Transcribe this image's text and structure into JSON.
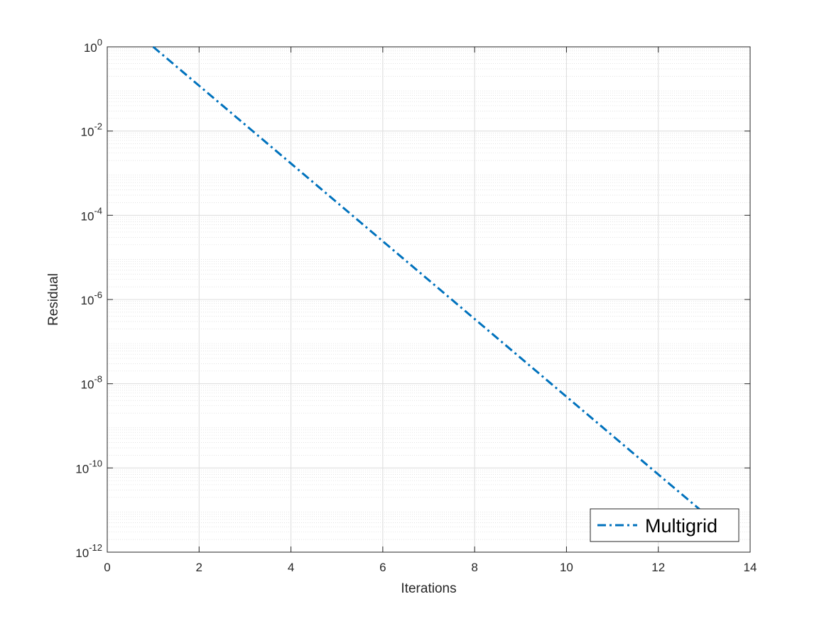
{
  "chart_data": {
    "type": "line",
    "title": "",
    "xlabel": "Iterations",
    "ylabel": "Residual",
    "xlim": [
      0,
      14
    ],
    "ylim": [
      1e-12,
      1
    ],
    "y_scale": "log",
    "x_ticks": [
      0,
      2,
      4,
      6,
      8,
      10,
      12,
      14
    ],
    "y_ticks": [
      {
        "base": "10",
        "exp": "-12",
        "value": 1e-12
      },
      {
        "base": "10",
        "exp": "-10",
        "value": 1e-10
      },
      {
        "base": "10",
        "exp": "-8",
        "value": 1e-08
      },
      {
        "base": "10",
        "exp": "-6",
        "value": 1e-06
      },
      {
        "base": "10",
        "exp": "-4",
        "value": 0.0001
      },
      {
        "base": "10",
        "exp": "-2",
        "value": 0.01
      },
      {
        "base": "10",
        "exp": "0",
        "value": 1
      }
    ],
    "grid": true,
    "minor_grid": true,
    "legend_position": "bottom-right",
    "series": [
      {
        "name": "Multigrid",
        "color": "#0072BD",
        "line_style": "dash-dot",
        "x": [
          1,
          2,
          3,
          4,
          5,
          6,
          7,
          8,
          9,
          10,
          11,
          12,
          13
        ],
        "y": [
          1,
          0.1194,
          0.01425,
          0.0017,
          0.000203,
          2.42e-05,
          2.89e-06,
          3.45e-07,
          4.12e-08,
          4.92e-09,
          5.87e-10,
          7e-11,
          8.4e-12
        ]
      }
    ]
  }
}
